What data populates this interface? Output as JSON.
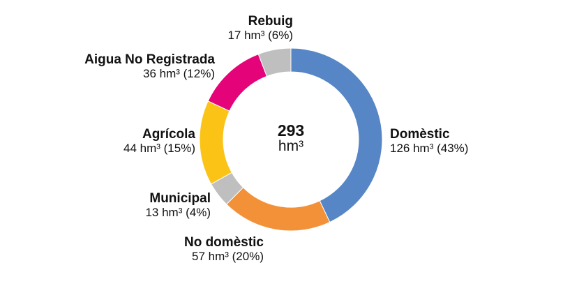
{
  "chart_data": {
    "type": "pie",
    "variant": "donut",
    "total": {
      "value": "293",
      "unit": "hm³"
    },
    "slices": [
      {
        "key": "domestic",
        "name": "Domèstic",
        "value": 126,
        "value_label": "126 hm³ (43%)",
        "color": "#5686C6"
      },
      {
        "key": "nodomestic",
        "name": "No domèstic",
        "value": 57,
        "value_label": "57 hm³ (20%)",
        "color": "#F39138"
      },
      {
        "key": "municipal",
        "name": "Municipal",
        "value": 13,
        "value_label": "13 hm³ (4%)",
        "color": "#BFBFBF"
      },
      {
        "key": "agricola",
        "name": "Agrícola",
        "value": 44,
        "value_label": "44 hm³ (15%)",
        "color": "#FBC315"
      },
      {
        "key": "aigua",
        "name": "Aigua No Registrada",
        "value": 36,
        "value_label": "36 hm³ (12%)",
        "color": "#E5037A"
      },
      {
        "key": "rebuig",
        "name": "Rebuig",
        "value": 17,
        "value_label": "17 hm³ (6%)",
        "color": "#BFBFBF"
      }
    ],
    "start_angle_deg": 0,
    "direction": "clockwise"
  }
}
